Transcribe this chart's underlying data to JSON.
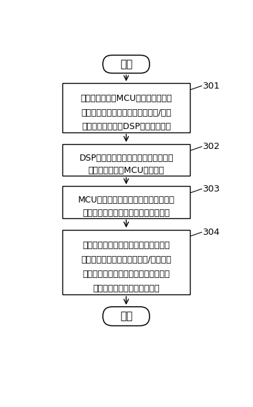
{
  "background_color": "#ffffff",
  "start_label": "开始",
  "end_label": "结束",
  "boxes": [
    {
      "id": 1,
      "lines": [
        "数据采集模块由MCU控制模块进行控",
        "制，采集肠道图像数据和胶囊位置/姿态",
        "数据并将其发送给DSP数据处理模块"
      ],
      "tag": "301"
    },
    {
      "id": 2,
      "lines": [
        "DSP数据处理模块对所接收到的信号进",
        "行处理后发送给MCU控制模块"
      ],
      "tag": "302"
    },
    {
      "id": 3,
      "lines": [
        "MCU控制模块将处理后的数据信息通过",
        "无线数据发射模块发送给位于患者体外"
      ],
      "tag": "303"
    },
    {
      "id": 4,
      "lines": [
        "接收盒接收数据信息并存储或者发送给",
        "智能终端；同时，对胶囊位置/姿态数据",
        "进行处理，生成胶囊控制指令，发送给",
        "胶囊内窥镜中以对其进行控制"
      ],
      "tag": "304"
    }
  ],
  "font_size": 9.0,
  "tag_font_size": 9.5,
  "capsule_font_size": 11
}
